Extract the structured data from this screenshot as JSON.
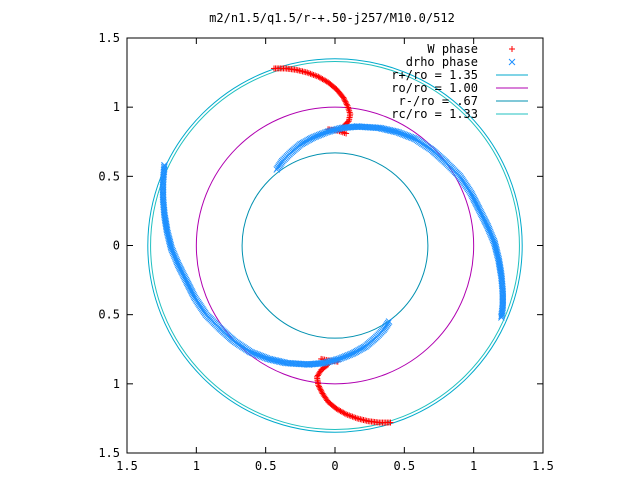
{
  "chart_data": {
    "type": "scatter",
    "title": "m2/n1.5/q1.5/r-+.50-j257/M10.0/512",
    "xlabel": "",
    "ylabel": "",
    "xlim": [
      -1.5,
      1.5
    ],
    "ylim": [
      -1.5,
      1.5
    ],
    "x_ticks": [
      -1.5,
      -1,
      -0.5,
      0,
      0.5,
      1,
      1.5
    ],
    "y_ticks": [
      -1.5,
      -1,
      -0.5,
      0,
      0.5,
      1,
      1.5
    ],
    "x_tick_labels": [
      "1.5",
      "1",
      "0.5",
      "0",
      "0.5",
      "1",
      "1.5"
    ],
    "y_tick_labels": [
      "1.5",
      "1",
      "0.5",
      "0",
      "0.5",
      "1",
      "1.5"
    ],
    "grid": false,
    "legend_position": "top-right",
    "series": [
      {
        "name": "W phase",
        "marker": "plus",
        "color": "#ff0000",
        "segments": [
          [
            [
              -0.44,
              1.28
            ],
            [
              -0.36,
              1.28
            ],
            [
              -0.28,
              1.27
            ],
            [
              -0.2,
              1.25
            ],
            [
              -0.12,
              1.22
            ],
            [
              -0.05,
              1.18
            ],
            [
              0.01,
              1.13
            ],
            [
              0.06,
              1.07
            ],
            [
              0.09,
              1.01
            ],
            [
              0.11,
              0.95
            ],
            [
              0.1,
              0.9
            ],
            [
              0.06,
              0.86
            ]
          ],
          [
            [
              0.4,
              -1.28
            ],
            [
              0.32,
              -1.28
            ],
            [
              0.24,
              -1.27
            ],
            [
              0.16,
              -1.25
            ],
            [
              0.08,
              -1.22
            ],
            [
              0.01,
              -1.18
            ],
            [
              -0.05,
              -1.13
            ],
            [
              -0.09,
              -1.07
            ],
            [
              -0.12,
              -1.01
            ],
            [
              -0.13,
              -0.95
            ],
            [
              -0.1,
              -0.9
            ],
            [
              -0.05,
              -0.86
            ]
          ],
          [
            [
              -0.05,
              0.84
            ],
            [
              0.02,
              0.83
            ],
            [
              0.08,
              0.81
            ]
          ],
          [
            [
              0.02,
              -0.84
            ],
            [
              -0.05,
              -0.83
            ],
            [
              -0.1,
              -0.82
            ]
          ]
        ]
      },
      {
        "name": "drho phase",
        "marker": "cross",
        "color": "#1e90ff",
        "segments": [
          [
            [
              -0.42,
              0.55
            ],
            [
              -0.38,
              0.61
            ],
            [
              -0.32,
              0.67
            ],
            [
              -0.25,
              0.73
            ],
            [
              -0.16,
              0.78
            ],
            [
              -0.06,
              0.82
            ],
            [
              0.05,
              0.85
            ],
            [
              0.16,
              0.86
            ]
          ],
          [
            [
              0.16,
              0.86
            ],
            [
              0.32,
              0.85
            ],
            [
              0.45,
              0.82
            ],
            [
              0.58,
              0.77
            ],
            [
              0.7,
              0.69
            ],
            [
              0.8,
              0.6
            ],
            [
              0.9,
              0.5
            ],
            [
              0.98,
              0.38
            ],
            [
              1.04,
              0.26
            ],
            [
              1.1,
              0.14
            ],
            [
              1.15,
              0.02
            ],
            [
              1.18,
              -0.1
            ],
            [
              1.2,
              -0.22
            ],
            [
              1.21,
              -0.34
            ],
            [
              1.21,
              -0.44
            ],
            [
              1.2,
              -0.52
            ]
          ],
          [
            [
              0.39,
              -0.55
            ],
            [
              0.35,
              -0.61
            ],
            [
              0.29,
              -0.67
            ],
            [
              0.22,
              -0.73
            ],
            [
              0.13,
              -0.78
            ],
            [
              0.03,
              -0.82
            ],
            [
              -0.08,
              -0.85
            ],
            [
              -0.19,
              -0.86
            ]
          ],
          [
            [
              -0.19,
              -0.86
            ],
            [
              -0.35,
              -0.85
            ],
            [
              -0.48,
              -0.82
            ],
            [
              -0.61,
              -0.77
            ],
            [
              -0.73,
              -0.69
            ],
            [
              -0.83,
              -0.6
            ],
            [
              -0.93,
              -0.5
            ],
            [
              -1.01,
              -0.38
            ],
            [
              -1.07,
              -0.26
            ],
            [
              -1.13,
              -0.14
            ],
            [
              -1.18,
              -0.02
            ],
            [
              -1.21,
              0.1
            ],
            [
              -1.23,
              0.22
            ],
            [
              -1.24,
              0.34
            ],
            [
              -1.24,
              0.46
            ],
            [
              -1.23,
              0.58
            ]
          ]
        ]
      },
      {
        "name": "r+/ro = 1.35",
        "type": "circle",
        "radius": 1.35,
        "color": "#00aacc"
      },
      {
        "name": "ro/ro = 1.00",
        "type": "circle",
        "radius": 1.0,
        "color": "#b000b0"
      },
      {
        "name": "r-/ro = .67",
        "type": "circle",
        "radius": 0.67,
        "color": "#0090b0"
      },
      {
        "name": "rc/ro = 1.33",
        "type": "circle",
        "radius": 1.33,
        "color": "#20c0c0"
      }
    ]
  }
}
